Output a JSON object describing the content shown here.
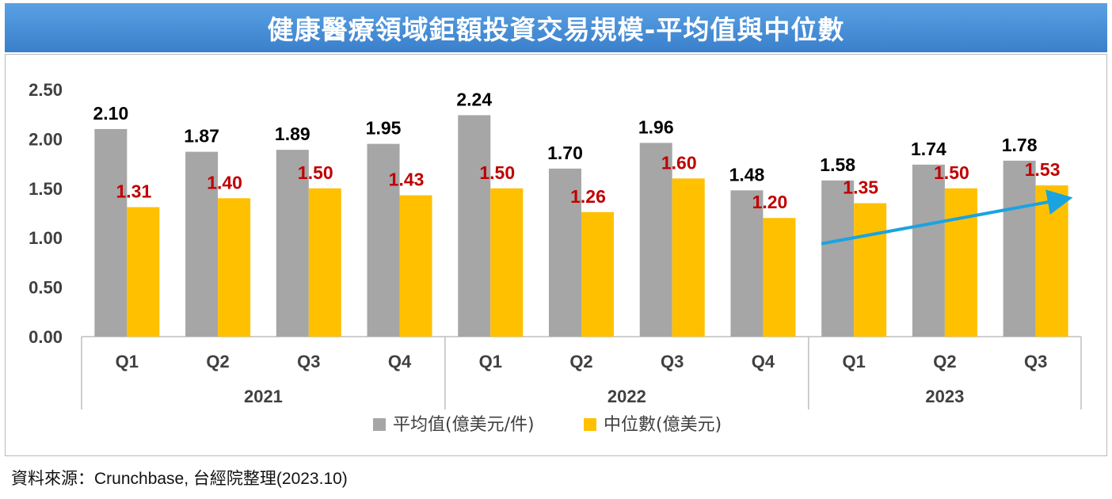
{
  "header": {
    "title": "健康醫療領域鉅額投資交易規模-平均值與中位數"
  },
  "footer": {
    "source": "資料來源：Crunchbase, 台經院整理(2023.10)"
  },
  "colors": {
    "title_bg": "#4a90d9",
    "mean_bar": "#a6a6a6",
    "median_bar": "#ffc000",
    "mean_label": "#000000",
    "median_label": "#c00000",
    "trend_arrow": "#1aa3e0"
  },
  "chart_data": {
    "type": "bar",
    "title": "健康醫療領域鉅額投資交易規模-平均值與中位數",
    "categories": [
      "Q1",
      "Q2",
      "Q3",
      "Q4",
      "Q1",
      "Q2",
      "Q3",
      "Q4",
      "Q1",
      "Q2",
      "Q3"
    ],
    "groups": [
      {
        "label": "2021",
        "count": 4
      },
      {
        "label": "2022",
        "count": 4
      },
      {
        "label": "2023",
        "count": 3
      }
    ],
    "series": [
      {
        "name": "平均值(億美元/件)",
        "color": "#a6a6a6",
        "label_color": "#000000",
        "values": [
          2.1,
          1.87,
          1.89,
          1.95,
          2.24,
          1.7,
          1.96,
          1.48,
          1.58,
          1.74,
          1.78
        ]
      },
      {
        "name": "中位數(億美元)",
        "color": "#ffc000",
        "label_color": "#c00000",
        "values": [
          1.31,
          1.4,
          1.5,
          1.43,
          1.5,
          1.26,
          1.6,
          1.2,
          1.35,
          1.5,
          1.53
        ]
      }
    ],
    "ylim": [
      0,
      2.5
    ],
    "yticks": [
      "0.00",
      "0.50",
      "1.00",
      "1.50",
      "2.00",
      "2.50"
    ],
    "legend_position": "bottom",
    "grid": false,
    "annotation": {
      "type": "trend-arrow",
      "from": {
        "category_index": 8,
        "value": 0.94
      },
      "to": {
        "category_index": 10,
        "value": 1.39
      }
    }
  }
}
